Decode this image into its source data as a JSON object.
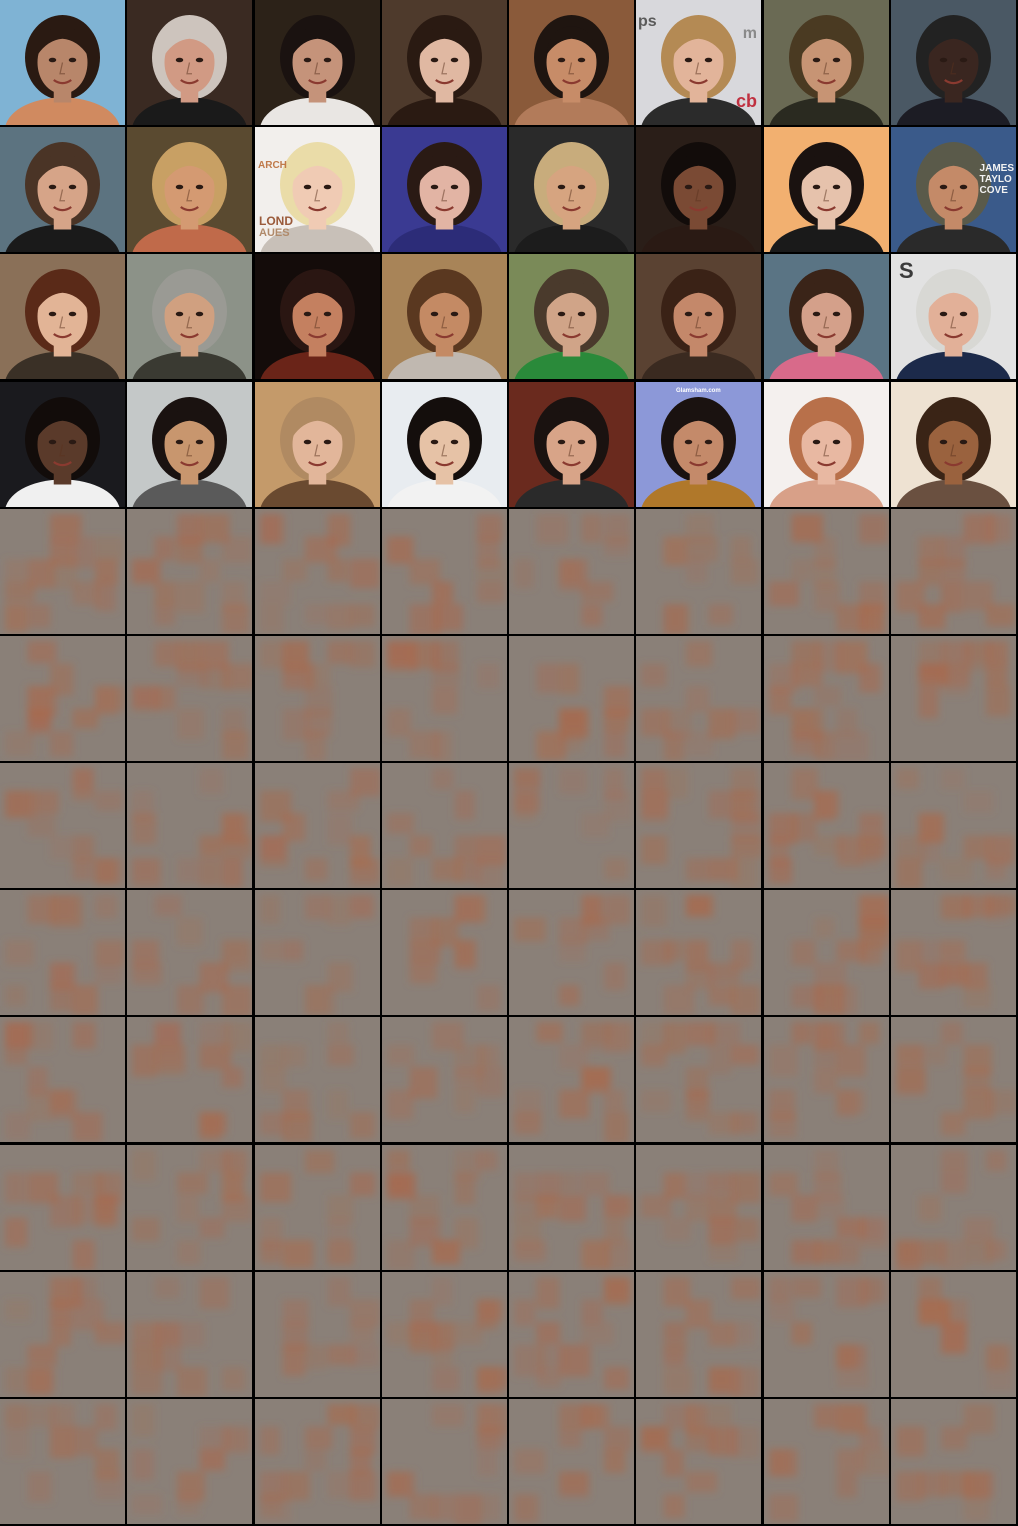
{
  "grid": {
    "columns": 8,
    "rows": 12,
    "photo_rows": 4,
    "noise_rows": 8
  },
  "photo_text": {
    "r0c5_left": "ps",
    "r0c5_mid": "m",
    "r0c5_logo": "cb",
    "r1c2_top": "ARCH",
    "r1c2_mid": "LOND",
    "r1c2_bot": "AUES",
    "r1c7": "JAMES\nTAYLO\nCOVE",
    "r2c7": "S",
    "r3c5": "Glamsham.com"
  },
  "photos": [
    [
      {
        "name": "face-woman-smiling-beach",
        "bg": "#7fb3d4",
        "skin": "#b8866a",
        "hair": "#2a1a12",
        "cloth": "#d08a60"
      },
      {
        "name": "face-man-curly-gray-hair",
        "bg": "#3a2a22",
        "skin": "#d19a84",
        "hair": "#cdc4bd",
        "cloth": "#1a1a1a"
      },
      {
        "name": "face-woman-dark-hair-white-top",
        "bg": "#2c2218",
        "skin": "#c5937a",
        "hair": "#1a1210",
        "cloth": "#e9e6e3"
      },
      {
        "name": "face-woman-brunette",
        "bg": "#4e3a2c",
        "skin": "#e0b8a2",
        "hair": "#2a1a12",
        "cloth": "#2a1a12"
      },
      {
        "name": "face-man-short-dark-hair",
        "bg": "#8a5a3a",
        "skin": "#c78c68",
        "hair": "#1f1510",
        "cloth": "#b27b5a"
      },
      {
        "name": "face-man-blond-event",
        "bg": "#d8d8dc",
        "skin": "#e2b49a",
        "hair": "#b48a54",
        "cloth": "#2b2b2b"
      },
      {
        "name": "face-man-curly-brown-hair",
        "bg": "#6a6a54",
        "skin": "#c79474",
        "hair": "#4a3a22",
        "cloth": "#2a2a20"
      },
      {
        "name": "face-man-older-smiling-suit",
        "bg": "#4a5864",
        "skin": "#3a2620",
        "hair": "#222222",
        "cloth": "#1c1c24"
      }
    ],
    [
      {
        "name": "face-woman-braided-hair",
        "bg": "#5c7380",
        "skin": "#d6a488",
        "hair": "#4a3426",
        "cloth": "#1a1a1a"
      },
      {
        "name": "face-man-blond-smiling",
        "bg": "#5a4a30",
        "skin": "#d49a72",
        "hair": "#c8a064",
        "cloth": "#c06a4a"
      },
      {
        "name": "face-woman-blonde-event",
        "bg": "#f2efec",
        "skin": "#f0cbb4",
        "hair": "#eadca8",
        "cloth": "#c8c0b8"
      },
      {
        "name": "face-woman-red-headband",
        "bg": "#3a3a92",
        "skin": "#e2b4a4",
        "hair": "#2a1a14",
        "cloth": "#2c2c78"
      },
      {
        "name": "face-man-spiky-blond-hair",
        "bg": "#2a2a2a",
        "skin": "#d6a480",
        "hair": "#c8ac7c",
        "cloth": "#1c1c1c"
      },
      {
        "name": "face-woman-dark-skin-smiling",
        "bg": "#2a1e18",
        "skin": "#7a4a34",
        "hair": "#120c0a",
        "cloth": "#2a1a14"
      },
      {
        "name": "face-woman-dark-bob",
        "bg": "#f2b070",
        "skin": "#e6c2ac",
        "hair": "#1a1210",
        "cloth": "#1a1a1a"
      },
      {
        "name": "face-man-cap-older",
        "bg": "#3a5a8a",
        "skin": "#c48a68",
        "hair": "#5a5a4a",
        "cloth": "#2a2a2a"
      }
    ],
    [
      {
        "name": "face-woman-short-auburn-hair",
        "bg": "#8a7058",
        "skin": "#e2b496",
        "hair": "#5a2a18",
        "cloth": "#3a3026"
      },
      {
        "name": "face-man-gray-beard",
        "bg": "#8c9288",
        "skin": "#d0a080",
        "hair": "#9a9a94",
        "cloth": "#3a3a32"
      },
      {
        "name": "face-man-singing-microphone",
        "bg": "#140c0a",
        "skin": "#c48060",
        "hair": "#2a1612",
        "cloth": "#6a2418"
      },
      {
        "name": "face-woman-light-brown-hair",
        "bg": "#a88458",
        "skin": "#c48a64",
        "hair": "#5a3820",
        "cloth": "#c0b8b0"
      },
      {
        "name": "face-man-glasses-green-scarf",
        "bg": "#7a8a58",
        "skin": "#d0a488",
        "hair": "#4a3a2c",
        "cloth": "#2a8a3a"
      },
      {
        "name": "face-woman-curly-brown-hair",
        "bg": "#5a4232",
        "skin": "#c4886a",
        "hair": "#3a2216",
        "cloth": "#3a2a20"
      },
      {
        "name": "face-woman-long-brown-hair",
        "bg": "#5a7484",
        "skin": "#d4a08a",
        "hair": "#3a2418",
        "cloth": "#d86a8a"
      },
      {
        "name": "face-man-elderly-smiling",
        "bg": "#e2e2e2",
        "skin": "#e2b098",
        "hair": "#d8d8d4",
        "cloth": "#1c2a4a"
      }
    ],
    [
      {
        "name": "face-man-athlete-jersey",
        "bg": "#1a1a1e",
        "skin": "#5a3a2a",
        "hair": "#120c0a",
        "cloth": "#f0f0f0"
      },
      {
        "name": "face-man-smiling-asian",
        "bg": "#c4c8c8",
        "skin": "#c8966e",
        "hair": "#1a1210",
        "cloth": "#5a5a5a"
      },
      {
        "name": "face-woman-pixie-cut",
        "bg": "#c49a6a",
        "skin": "#e2b69a",
        "hair": "#b08a62",
        "cloth": "#6a4a30"
      },
      {
        "name": "face-woman-short-black-hair",
        "bg": "#e8ecf0",
        "skin": "#e6c2a6",
        "hair": "#140e0c",
        "cloth": "#f2f2f2"
      },
      {
        "name": "face-woman-dark-hair-smiling",
        "bg": "#6a2a1e",
        "skin": "#d8a488",
        "hair": "#1a1210",
        "cloth": "#2a2a2a"
      },
      {
        "name": "face-woman-jewelry-blue-bg",
        "bg": "#8c98d8",
        "skin": "#c48a6a",
        "hair": "#1a1210",
        "cloth": "#b0782a"
      },
      {
        "name": "face-woman-red-hair",
        "bg": "#f4f0ee",
        "skin": "#e8b8a2",
        "hair": "#b8704a",
        "cloth": "#d8a088"
      },
      {
        "name": "face-woman-smiling-long-hair",
        "bg": "#eee2d2",
        "skin": "#9a623e",
        "hair": "#3a2416",
        "cloth": "#6a5040"
      }
    ]
  ],
  "noise": {
    "bg": "#8a8078",
    "blob": "#a86a4e"
  }
}
